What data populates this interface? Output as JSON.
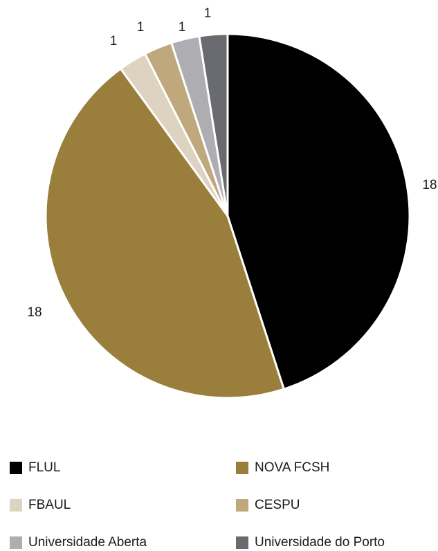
{
  "chart_data": {
    "type": "pie",
    "start_angle_deg": 0,
    "direction": "clockwise",
    "slices": [
      {
        "label": "FLUL",
        "value": 18,
        "color": "#000000"
      },
      {
        "label": "NOVA FCSH",
        "value": 18,
        "color": "#9a7f3c"
      },
      {
        "label": "FBAUL",
        "value": 1,
        "color": "#ddd3c0"
      },
      {
        "label": "CESPU",
        "value": 1,
        "color": "#bea87c"
      },
      {
        "label": "Universidade Aberta",
        "value": 1,
        "color": "#aeadb2"
      },
      {
        "label": "Universidade do Porto",
        "value": 1,
        "color": "#6a6b70"
      }
    ],
    "legend_position": "bottom",
    "data_labels": [
      "18",
      "18",
      "1",
      "1",
      "1",
      "1"
    ]
  }
}
